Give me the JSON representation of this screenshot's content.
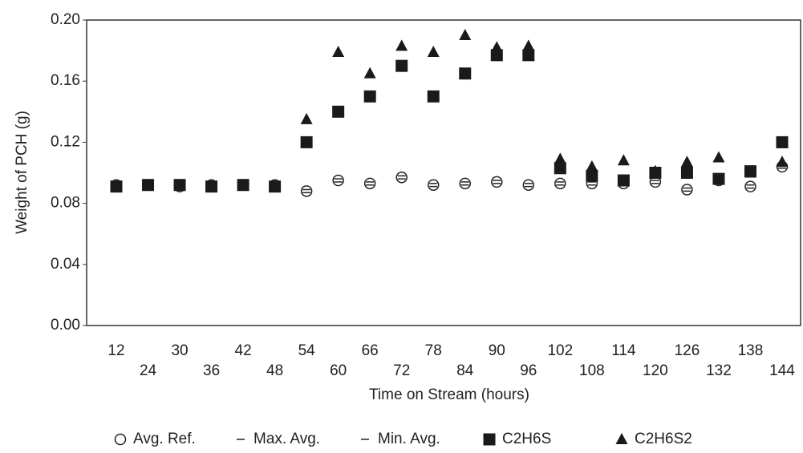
{
  "chart_data": {
    "type": "scatter",
    "x_label": "Time on Stream (hours)",
    "y_label": "Weight of PCH (g)",
    "categories": [
      12,
      24,
      30,
      36,
      42,
      48,
      54,
      60,
      66,
      72,
      78,
      84,
      90,
      96,
      102,
      108,
      114,
      120,
      126,
      132,
      138,
      144
    ],
    "ylim": [
      0,
      0.2
    ],
    "yticks": [
      {
        "value": 0,
        "label": "0.00"
      },
      {
        "value": 0.04,
        "label": "0.04"
      },
      {
        "value": 0.08,
        "label": "0.08"
      },
      {
        "value": 0.12,
        "label": "0.12"
      },
      {
        "value": 0.16,
        "label": "0.16"
      },
      {
        "value": 0.2,
        "label": "0.20"
      }
    ],
    "legend": "bottom",
    "series": [
      {
        "name": "Avg. Ref.",
        "marker": "circle",
        "color": "#222222",
        "values": [
          0.092,
          0.092,
          0.091,
          0.092,
          0.092,
          0.092,
          0.088,
          0.095,
          0.093,
          0.097,
          0.092,
          0.093,
          0.094,
          0.092,
          0.093,
          0.093,
          0.093,
          0.094,
          0.089,
          0.095,
          0.091,
          0.104
        ]
      },
      {
        "name": "Max. Avg.",
        "marker": "dash",
        "color": "#222222",
        "values": [
          0.093,
          0.093,
          0.092,
          0.093,
          0.093,
          0.093,
          0.089,
          0.096,
          0.094,
          0.098,
          0.093,
          0.094,
          0.095,
          0.093,
          0.094,
          0.094,
          0.094,
          0.095,
          0.09,
          0.096,
          0.092,
          0.105
        ]
      },
      {
        "name": "Min. Avg.",
        "marker": "dash",
        "color": "#222222",
        "values": [
          0.091,
          0.091,
          0.09,
          0.091,
          0.091,
          0.091,
          0.087,
          0.094,
          0.092,
          0.096,
          0.091,
          0.092,
          0.093,
          0.091,
          0.092,
          0.092,
          0.092,
          0.093,
          0.088,
          0.094,
          0.09,
          0.103
        ]
      },
      {
        "name": "C2H6S",
        "marker": "square",
        "color": "#1a1a1a",
        "values": [
          0.091,
          0.092,
          0.092,
          0.091,
          0.092,
          0.091,
          0.12,
          0.14,
          0.15,
          0.17,
          0.15,
          0.165,
          0.177,
          0.177,
          0.103,
          0.098,
          0.095,
          0.1,
          0.1,
          0.096,
          0.101,
          0.12
        ]
      },
      {
        "name": "C2H6S2",
        "marker": "triangle",
        "color": "#1a1a1a",
        "values": [
          0.091,
          0.092,
          0.092,
          0.091,
          0.092,
          0.091,
          0.135,
          0.179,
          0.165,
          0.183,
          0.179,
          0.19,
          0.182,
          0.183,
          0.109,
          0.104,
          0.108,
          0.101,
          0.107,
          0.11,
          0.1,
          0.107
        ]
      }
    ]
  }
}
